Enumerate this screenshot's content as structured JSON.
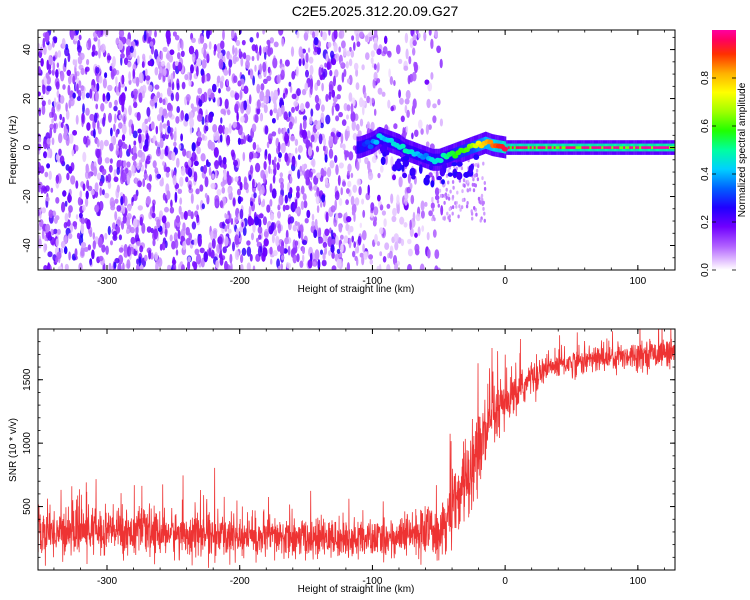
{
  "title": "C2E5.2025.312.20.09.G27",
  "colorbar": {
    "label": "Normalized spectral amplitude",
    "ticks": [
      0.0,
      0.2,
      0.4,
      0.6,
      0.8
    ],
    "tick_labels": [
      "0.0",
      "0.2",
      "0.4",
      "0.6",
      "0.8"
    ],
    "range": [
      0,
      1
    ]
  },
  "chart_data": [
    {
      "type": "heatmap",
      "title": "C2E5.2025.312.20.09.G27",
      "xlabel": "Height of straight line (km)",
      "ylabel": "Frequency (Hz)",
      "xlim": [
        -352,
        128
      ],
      "ylim": [
        -50,
        48
      ],
      "xticks": [
        -300,
        -200,
        -100,
        0,
        100
      ],
      "xtick_labels": [
        "-300",
        "-200",
        "-100",
        "0",
        "100"
      ],
      "yticks": [
        -40,
        -20,
        0,
        20,
        40
      ],
      "ytick_labels": [
        "-40",
        "-20",
        "0",
        "20",
        "40"
      ],
      "colormap": "rainbow (white at 0, violet low, red high)",
      "ridge": {
        "description": "dominant spectral peak frequency vs height",
        "x": [
          -110,
          -100,
          -95,
          -90,
          -85,
          -80,
          -75,
          -70,
          -65,
          -60,
          -55,
          -50,
          -45,
          -40,
          -35,
          -30,
          -25,
          -20,
          -15,
          -10,
          -5,
          0,
          20,
          50,
          100,
          128
        ],
        "y": [
          0,
          2,
          4,
          3,
          2,
          1,
          -1,
          -2,
          -3,
          -4,
          -5,
          -5,
          -4,
          -3,
          -2,
          -1,
          0,
          1,
          2,
          1,
          0.5,
          0,
          0,
          0,
          0,
          0
        ],
        "amplitude": [
          0.25,
          0.35,
          0.45,
          0.4,
          0.45,
          0.45,
          0.5,
          0.45,
          0.4,
          0.35,
          0.45,
          0.45,
          0.5,
          0.55,
          0.6,
          0.6,
          0.65,
          0.75,
          0.8,
          0.85,
          0.9,
          0.95,
          0.97,
          0.98,
          0.99,
          1.0
        ]
      },
      "noise_region_x": [
        -352,
        -45
      ]
    },
    {
      "type": "line",
      "xlabel": "Height of straight line (km)",
      "ylabel": "SNR (10 * v/v)",
      "xlim": [
        -352,
        128
      ],
      "ylim": [
        0,
        1900
      ],
      "xticks": [
        -300,
        -200,
        -100,
        0,
        100
      ],
      "xtick_labels": [
        "-300",
        "-200",
        "-100",
        "0",
        "100"
      ],
      "yticks": [
        500,
        1000,
        1500
      ],
      "ytick_labels": [
        "500",
        "1000",
        "1500"
      ],
      "series": [
        {
          "color": "#ee3333",
          "x": [
            -352,
            -300,
            -250,
            -200,
            -150,
            -100,
            -80,
            -60,
            -50,
            -40,
            -35,
            -30,
            -25,
            -20,
            -15,
            -10,
            -5,
            0,
            5,
            10,
            20,
            30,
            40,
            60,
            80,
            100,
            128
          ],
          "y": [
            300,
            310,
            290,
            260,
            250,
            240,
            260,
            300,
            330,
            450,
            550,
            700,
            850,
            950,
            1050,
            1150,
            1250,
            1300,
            1350,
            1400,
            1520,
            1580,
            1620,
            1650,
            1680,
            1700,
            1720
          ],
          "noise_amplitude": [
            170,
            170,
            160,
            150,
            140,
            130,
            140,
            180,
            200,
            250,
            270,
            300,
            330,
            330,
            300,
            260,
            220,
            180,
            160,
            140,
            120,
            110,
            100,
            100,
            100,
            100,
            100
          ]
        }
      ]
    }
  ]
}
